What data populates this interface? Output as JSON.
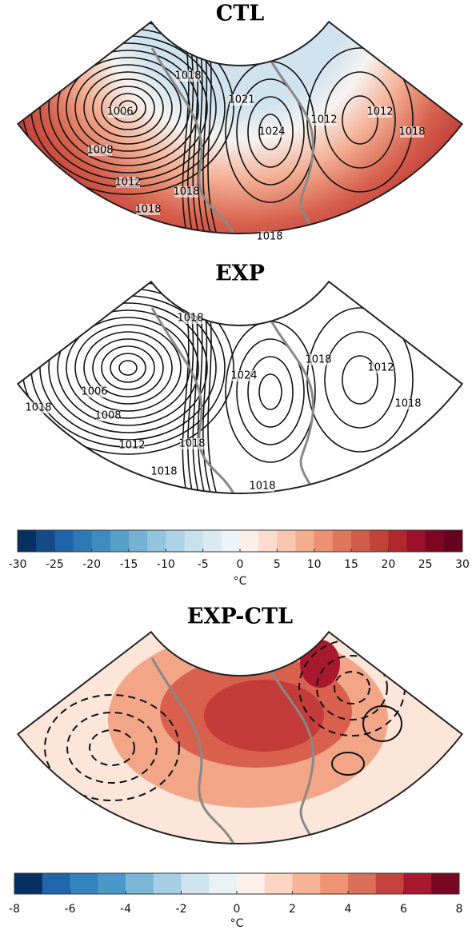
{
  "panels": [
    {
      "title": "CTL",
      "contour_labels": [
        "1006",
        "1008",
        "1012",
        "1018",
        "1018",
        "1018",
        "1024",
        "1021",
        "1018",
        "1012",
        "1018",
        "1012"
      ]
    },
    {
      "title": "EXP",
      "contour_labels": [
        "1018",
        "1006",
        "1008",
        "1012",
        "1018",
        "1018",
        "1018",
        "1024",
        "1018",
        "1012",
        "1018",
        "1018"
      ]
    },
    {
      "title": "EXP-CTL",
      "contour_labels": []
    }
  ],
  "colorbars": [
    {
      "lim": [
        -30,
        30
      ],
      "ticks": [
        -30,
        -25,
        -20,
        -15,
        -10,
        -5,
        0,
        5,
        10,
        15,
        20,
        25,
        30
      ],
      "unit": "°C",
      "colors": [
        "#053061",
        "#134b87",
        "#1f63a8",
        "#2e78b5",
        "#3d8bbf",
        "#569fc9",
        "#74b2d4",
        "#93c4de",
        "#aed3e6",
        "#c6e0ed",
        "#dbeaf2",
        "#edf3f6",
        "#fbefea",
        "#fbdcce",
        "#f8c6ae",
        "#f4ad8e",
        "#ec9171",
        "#e07659",
        "#d15c49",
        "#c1433a",
        "#b0272f",
        "#9a1129",
        "#7f0622",
        "#67001f"
      ]
    },
    {
      "lim": [
        -8,
        8
      ],
      "ticks": [
        -8,
        -6,
        -4,
        -2,
        0,
        2,
        4,
        6,
        8
      ],
      "unit": "°C",
      "colors": [
        "#053061",
        "#2166ac",
        "#3283be",
        "#4a98c9",
        "#7ab6d6",
        "#a6cfe3",
        "#cfe3ef",
        "#eaf1f5",
        "#fdf0ea",
        "#fcd6c3",
        "#f7b597",
        "#ee9472",
        "#dc6f58",
        "#c5433f",
        "#a8182e",
        "#7a0720"
      ]
    }
  ]
}
